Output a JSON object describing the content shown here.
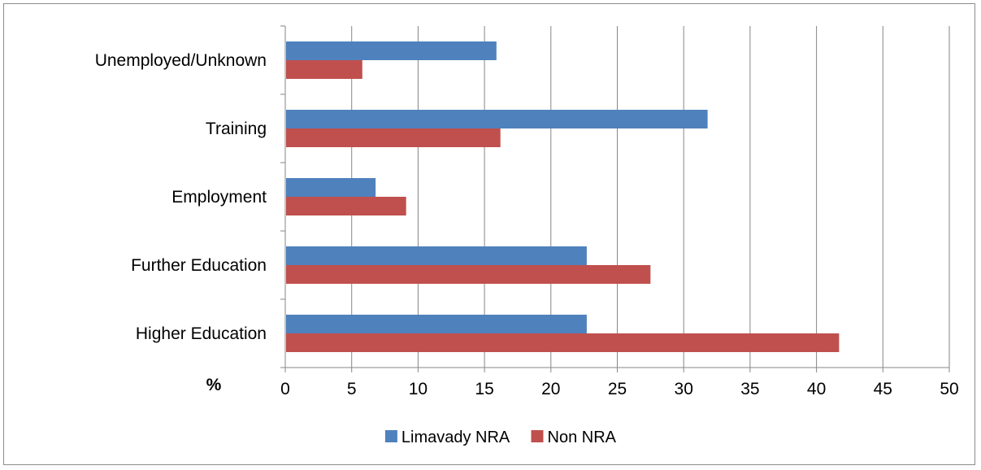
{
  "chart_data": {
    "type": "bar",
    "orientation": "horizontal",
    "title": "",
    "xlabel": "%",
    "ylabel": "",
    "categories": [
      "Higher Education",
      "Further Education",
      "Employment",
      "Training",
      "Unemployed/Unknown"
    ],
    "series": [
      {
        "name": "Limavady NRA",
        "color": "#4f81bd",
        "values": [
          22.7,
          22.7,
          6.8,
          31.8,
          15.9
        ]
      },
      {
        "name": "Non NRA",
        "color": "#c0504d",
        "values": [
          41.7,
          27.5,
          9.1,
          16.2,
          5.8
        ]
      }
    ],
    "xlim": [
      0,
      50
    ],
    "xticks": [
      "0",
      "5",
      "10",
      "15",
      "20",
      "25",
      "30",
      "35",
      "40",
      "45",
      "50"
    ],
    "grid": "vertical",
    "legend": "bottom"
  }
}
